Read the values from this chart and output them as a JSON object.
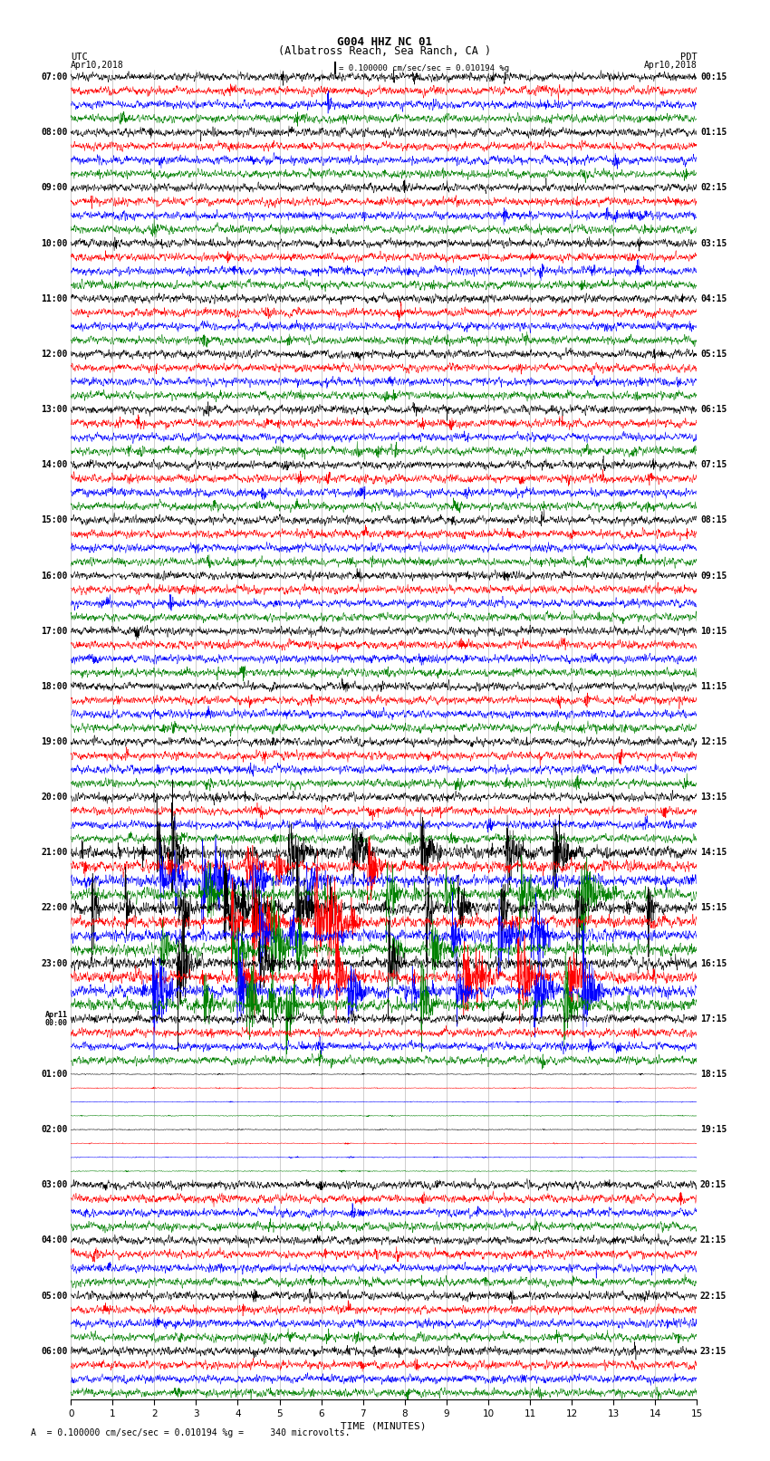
{
  "title_line1": "G004 HHZ NC 01",
  "title_line2": "(Albatross Reach, Sea Ranch, CA )",
  "scale_text": "= 0.100000 cm/sec/sec = 0.010194 %g",
  "bottom_text": "A  = 0.100000 cm/sec/sec = 0.010194 %g =     340 microvolts.",
  "xlabel": "TIME (MINUTES)",
  "bg_color": "#ffffff",
  "trace_colors": [
    "black",
    "red",
    "blue",
    "green"
  ],
  "left_times": [
    "07:00",
    "08:00",
    "09:00",
    "10:00",
    "11:00",
    "12:00",
    "13:00",
    "14:00",
    "15:00",
    "16:00",
    "17:00",
    "18:00",
    "19:00",
    "20:00",
    "21:00",
    "22:00",
    "23:00",
    "Apr11\n00:00",
    "01:00",
    "02:00",
    "03:00",
    "04:00",
    "05:00",
    "06:00"
  ],
  "right_times": [
    "00:15",
    "01:15",
    "02:15",
    "03:15",
    "04:15",
    "05:15",
    "06:15",
    "07:15",
    "08:15",
    "09:15",
    "10:15",
    "11:15",
    "12:15",
    "13:15",
    "14:15",
    "15:15",
    "16:15",
    "17:15",
    "18:15",
    "19:15",
    "20:15",
    "21:15",
    "22:15",
    "23:15"
  ],
  "n_rows": 24,
  "traces_per_row": 4,
  "xmin": 0,
  "xmax": 15,
  "xticks": [
    0,
    1,
    2,
    3,
    4,
    5,
    6,
    7,
    8,
    9,
    10,
    11,
    12,
    13,
    14,
    15
  ],
  "figwidth": 8.5,
  "figheight": 16.13,
  "dpi": 100,
  "event_rows": [
    14,
    15,
    16
  ],
  "quiet_rows": [
    18,
    19
  ]
}
